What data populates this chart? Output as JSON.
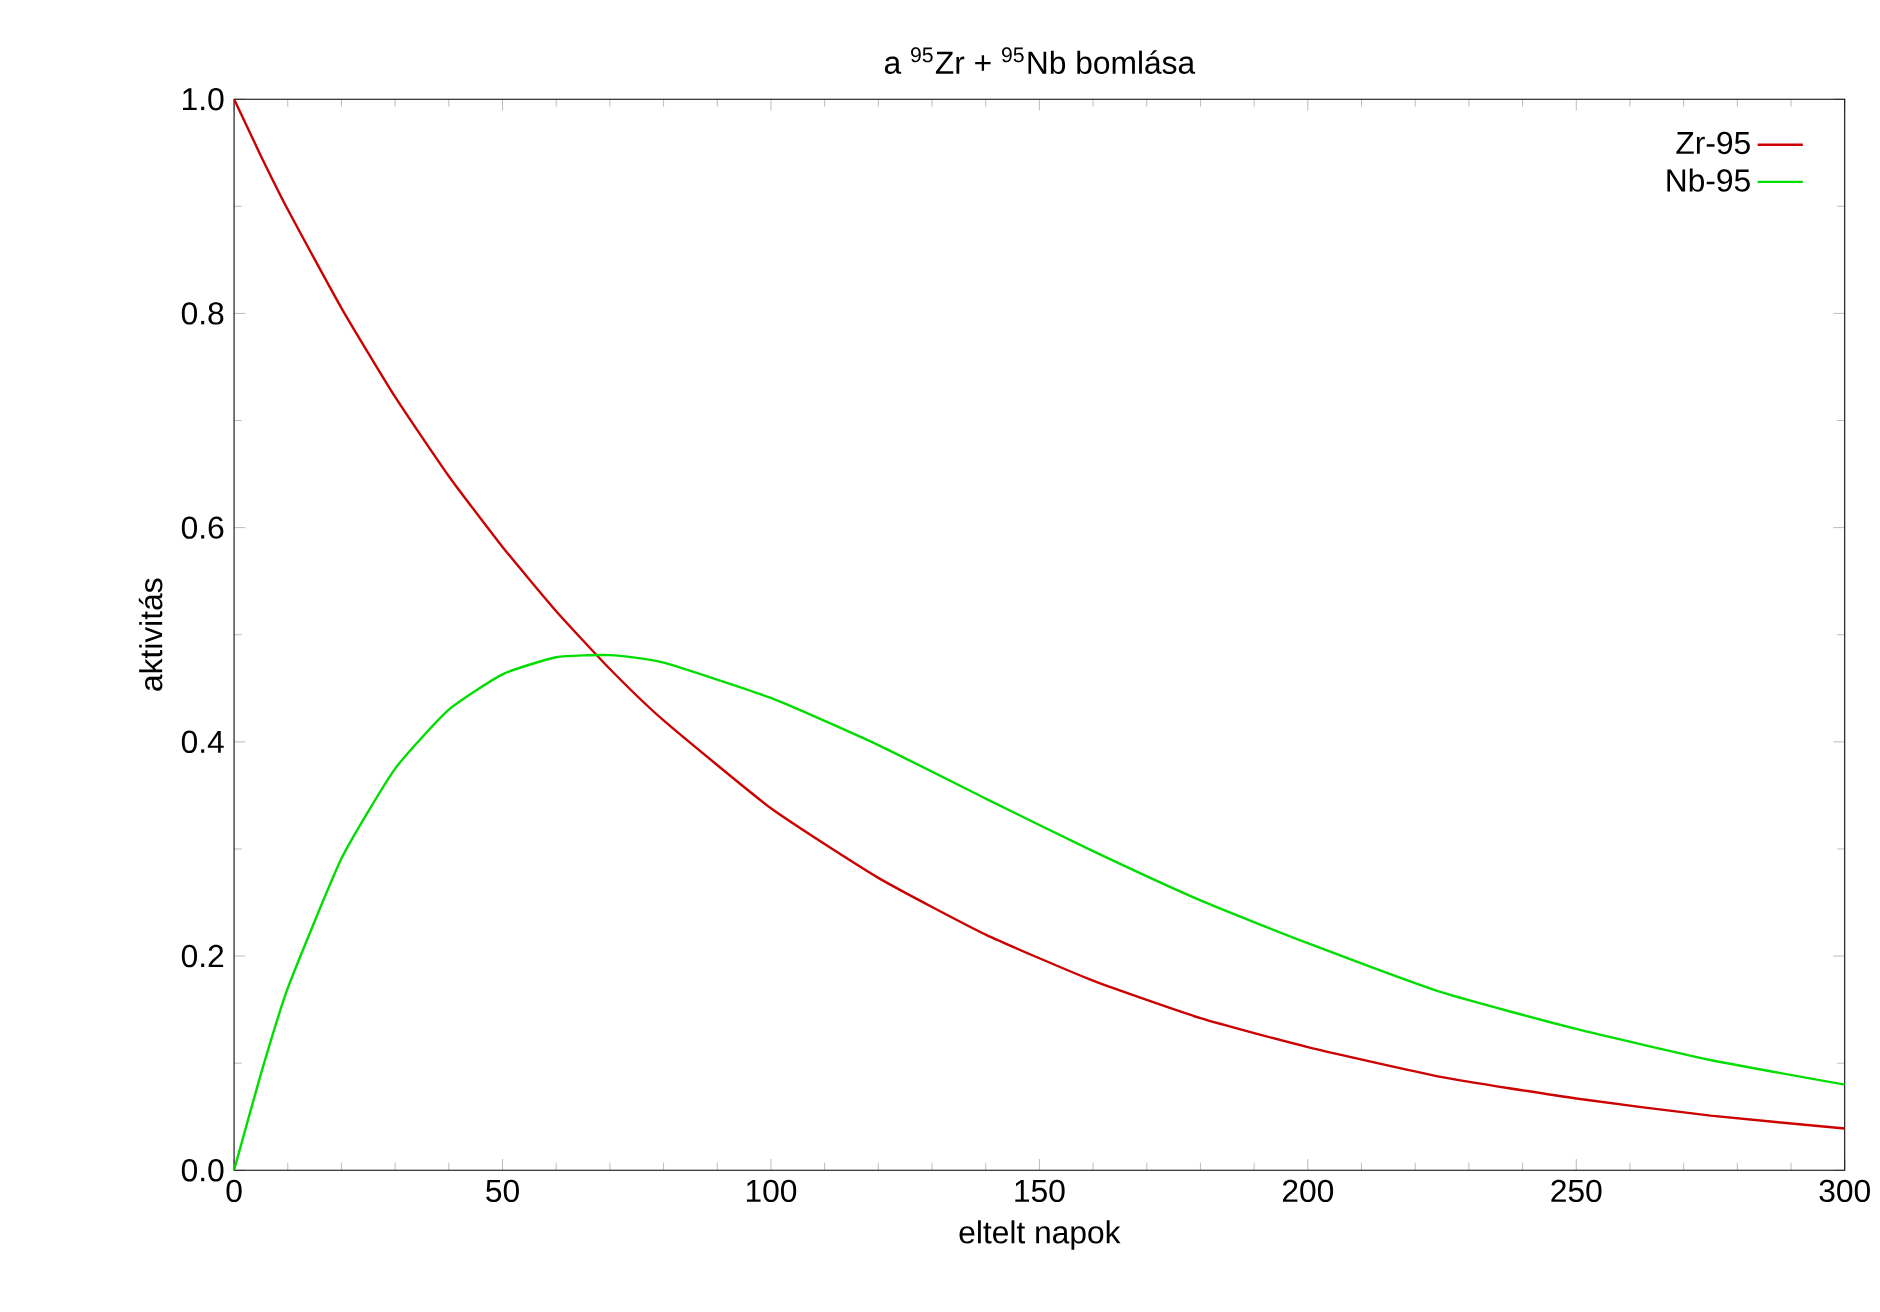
{
  "chart_data": {
    "type": "line",
    "title": "a $^{95}$Zr + $^{95}$Nb bomlása",
    "xlabel": "eltelt napok",
    "ylabel": "aktivitás",
    "x": [
      0,
      5,
      10,
      20,
      30,
      40,
      50,
      60,
      70,
      80,
      100,
      120,
      140,
      160,
      180,
      200,
      225,
      250,
      275,
      300
    ],
    "series": [
      {
        "name": "Zr-95",
        "color": "#cc0000",
        "values": [
          1,
          0.947,
          0.897,
          0.805,
          0.722,
          0.648,
          0.582,
          0.522,
          0.468,
          0.42,
          0.338,
          0.273,
          0.22,
          0.177,
          0.142,
          0.115,
          0.087,
          0.067,
          0.051,
          0.039
        ]
      },
      {
        "name": "Nb-95",
        "color": "#00dd00",
        "values": [
          0,
          0.09,
          0.17,
          0.291,
          0.375,
          0.43,
          0.463,
          0.479,
          0.481,
          0.474,
          0.441,
          0.397,
          0.347,
          0.298,
          0.252,
          0.212,
          0.166,
          0.132,
          0.103,
          0.08
        ]
      }
    ],
    "xlim": [
      0,
      300
    ],
    "ylim": [
      0,
      1
    ],
    "xticks": [
      0,
      50,
      100,
      150,
      200,
      250,
      300
    ],
    "yticks": [
      {
        "value": 0,
        "label": "0.0"
      },
      {
        "value": 0.2,
        "label": "0.2"
      },
      {
        "value": 0.4,
        "label": "0.4"
      },
      {
        "value": 0.6,
        "label": "0.6"
      },
      {
        "value": 0.8,
        "label": "0.8"
      },
      {
        "value": 1,
        "label": "1.0"
      }
    ],
    "legend": "top right"
  }
}
